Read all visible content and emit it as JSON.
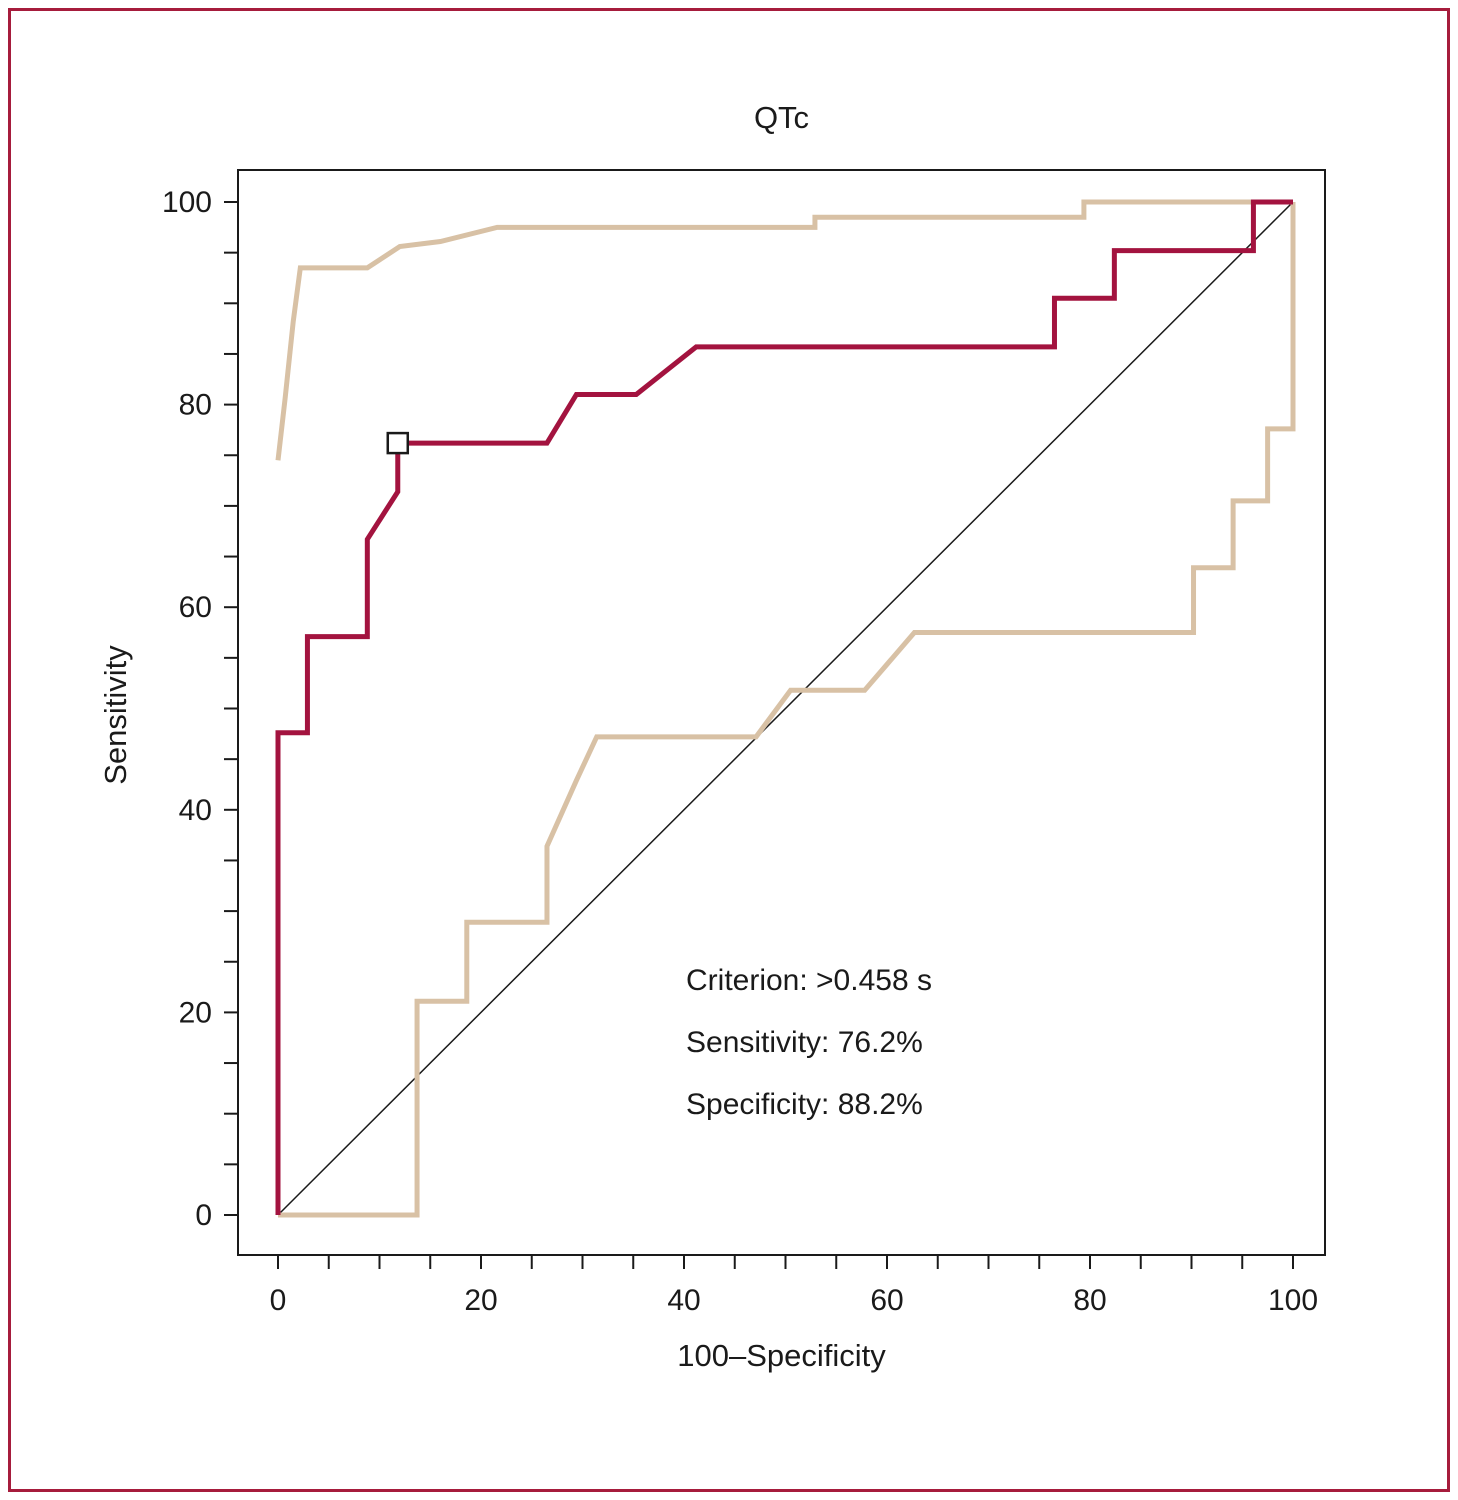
{
  "figure": {
    "border_color": "#a61c3c",
    "background": "#ffffff",
    "roc_color": "#a3133f",
    "ci_color": "#d8c1a5",
    "diagonal_color": "#1a1a1a"
  },
  "chart_data": {
    "type": "line",
    "title": "QTc",
    "xlabel": "100–Specificity",
    "ylabel": "Sensitivity",
    "xlim": [
      0,
      100
    ],
    "ylim": [
      0,
      100
    ],
    "grid": false,
    "legend": "none",
    "x_ticks_labeled": [
      0,
      20,
      40,
      60,
      80,
      100
    ],
    "y_ticks_labeled": [
      0,
      20,
      40,
      60,
      80,
      100
    ],
    "minor_tick_step": 5,
    "series": [
      {
        "name": "reference-diagonal",
        "color": "#1a1a1a",
        "width": 1.5,
        "points": [
          [
            0,
            0
          ],
          [
            100,
            100
          ]
        ]
      },
      {
        "name": "upper-95ci",
        "color": "#d8c1a5",
        "width": 5,
        "points": [
          [
            0,
            74.5
          ],
          [
            0.7,
            80.6
          ],
          [
            1.5,
            88.2
          ],
          [
            2.2,
            93.5
          ],
          [
            8.8,
            93.5
          ],
          [
            12,
            95.6
          ],
          [
            16,
            96.1
          ],
          [
            21.6,
            97.5
          ],
          [
            52.9,
            97.5
          ],
          [
            52.9,
            98.5
          ],
          [
            79.4,
            98.5
          ],
          [
            79.4,
            100
          ],
          [
            100,
            100
          ]
        ]
      },
      {
        "name": "lower-95ci",
        "color": "#d8c1a5",
        "width": 5,
        "points": [
          [
            0,
            0
          ],
          [
            13.7,
            0
          ],
          [
            13.7,
            21.1
          ],
          [
            18.6,
            21.1
          ],
          [
            18.6,
            28.9
          ],
          [
            26.5,
            28.9
          ],
          [
            26.5,
            36.4
          ],
          [
            29.4,
            42.9
          ],
          [
            31.4,
            47.2
          ],
          [
            47.1,
            47.2
          ],
          [
            50.5,
            51.8
          ],
          [
            57.8,
            51.8
          ],
          [
            62.7,
            57.5
          ],
          [
            90.2,
            57.5
          ],
          [
            90.2,
            63.9
          ],
          [
            94.1,
            63.9
          ],
          [
            94.1,
            70.5
          ],
          [
            97.5,
            70.5
          ],
          [
            97.5,
            77.6
          ],
          [
            100,
            77.6
          ],
          [
            100,
            100
          ]
        ]
      },
      {
        "name": "roc-curve",
        "color": "#a3133f",
        "width": 5,
        "points": [
          [
            0,
            0
          ],
          [
            0,
            47.6
          ],
          [
            2.9,
            47.6
          ],
          [
            2.9,
            57.1
          ],
          [
            8.8,
            57.1
          ],
          [
            8.8,
            66.7
          ],
          [
            11.8,
            71.4
          ],
          [
            11.8,
            76.2
          ],
          [
            26.5,
            76.2
          ],
          [
            29.4,
            81
          ],
          [
            35.3,
            81
          ],
          [
            41.2,
            85.7
          ],
          [
            76.5,
            85.7
          ],
          [
            76.5,
            90.5
          ],
          [
            82.4,
            90.5
          ],
          [
            82.4,
            95.2
          ],
          [
            96.1,
            95.2
          ],
          [
            96.1,
            100
          ],
          [
            100,
            100
          ]
        ]
      }
    ],
    "marker": {
      "name": "criterion-point",
      "x": 11.8,
      "y": 76.2,
      "shape": "square",
      "fill": "#ffffff",
      "stroke": "#1a1a1a"
    },
    "annotations": [
      "Criterion: >0.458 s",
      "Sensitivity: 76.2%",
      "Specificity: 88.2%"
    ]
  }
}
